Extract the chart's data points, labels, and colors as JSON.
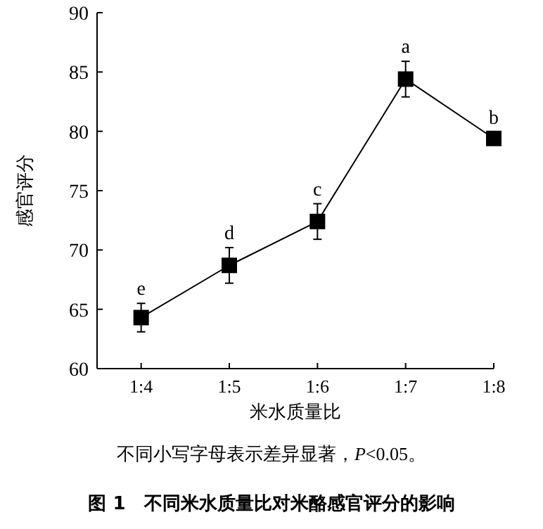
{
  "chart_data": {
    "type": "line",
    "title": "图 1　不同米水质量比对米酪感官评分的影响",
    "xlabel": "米水质量比",
    "ylabel": "感官评分",
    "categories": [
      "1:4",
      "1:5",
      "1:6",
      "1:7",
      "1:8"
    ],
    "values": [
      64.3,
      68.7,
      72.4,
      84.4,
      79.4
    ],
    "errors": [
      1.2,
      1.5,
      1.5,
      1.5,
      0.5
    ],
    "color": "#000000",
    "marker": "square",
    "line_style": "solid",
    "ylim": [
      60,
      90
    ],
    "yticks": [
      60,
      65,
      70,
      75,
      80,
      85,
      90
    ],
    "annotations": [
      {
        "text": "e",
        "x": "1:4",
        "y": 65.5
      },
      {
        "text": "d",
        "x": "1:5",
        "y": 70.2
      },
      {
        "text": "c",
        "x": "1:6",
        "y": 73.9
      },
      {
        "text": "a",
        "x": "1:7",
        "y": 85.9
      },
      {
        "text": "b",
        "x": "1:8",
        "y": 79.9
      },
      "不同小写字母表示差异显著，*P*<0.05。"
    ]
  }
}
